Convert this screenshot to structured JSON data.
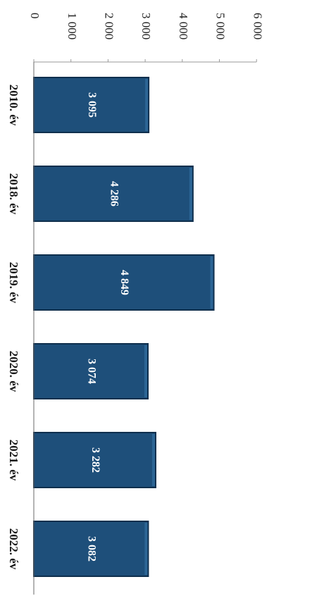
{
  "chart_data": {
    "type": "bar",
    "orientation": "horizontal",
    "categories": [
      "2010. év",
      "2018. év",
      "2019. év",
      "2020. év",
      "2021. év",
      "2022. év"
    ],
    "values": [
      3095,
      4286,
      4849,
      3074,
      3282,
      3082
    ],
    "value_labels": [
      "3 095",
      "4 286",
      "4 849",
      "3 074",
      "3 282",
      "3 082"
    ],
    "ticks": [
      0,
      1000,
      2000,
      3000,
      4000,
      5000,
      6000
    ],
    "tick_labels": [
      "0",
      "1 000",
      "2 000",
      "3 000",
      "4 000",
      "5 000",
      "6 000"
    ],
    "xlim": [
      0,
      6000
    ],
    "title": "",
    "xlabel": "",
    "ylabel": "",
    "grid": false,
    "legend": "none",
    "bar_color": "#1e4f7a",
    "bar_edge_color": "#0f2f4d",
    "value_label_color": "#ffffff"
  }
}
